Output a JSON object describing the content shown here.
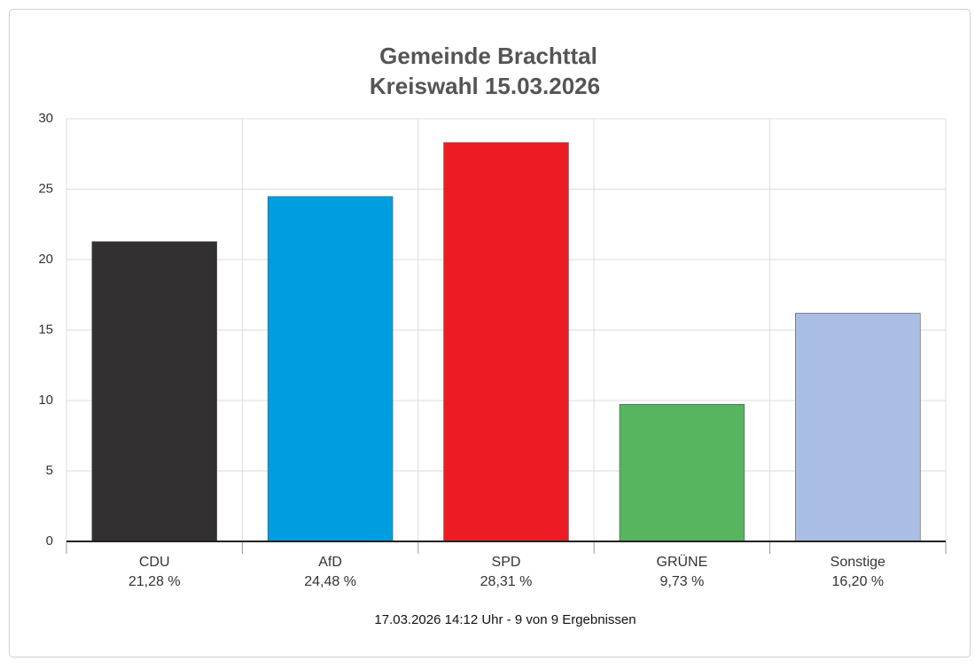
{
  "chart_data": {
    "type": "bar",
    "title": "Gemeinde Brachttal",
    "subtitle": "Kreiswahl 15.03.2026",
    "categories": [
      "CDU",
      "AfD",
      "SPD",
      "GRÜNE",
      "Sonstige"
    ],
    "values": [
      21.28,
      24.48,
      28.31,
      9.73,
      16.2
    ],
    "value_labels": [
      "21,28 %",
      "24,48 %",
      "28,31 %",
      "9,73 %",
      "16,20 %"
    ],
    "colors": [
      "#323031",
      "#009ee0",
      "#ed1c24",
      "#57b45f",
      "#aabde3"
    ],
    "ylim": [
      0,
      30
    ],
    "yticks": [
      0,
      5,
      10,
      15,
      20,
      25,
      30
    ],
    "grid": true,
    "footnote": "17.03.2026 14:12 Uhr - 9 von 9 Ergebnissen"
  }
}
